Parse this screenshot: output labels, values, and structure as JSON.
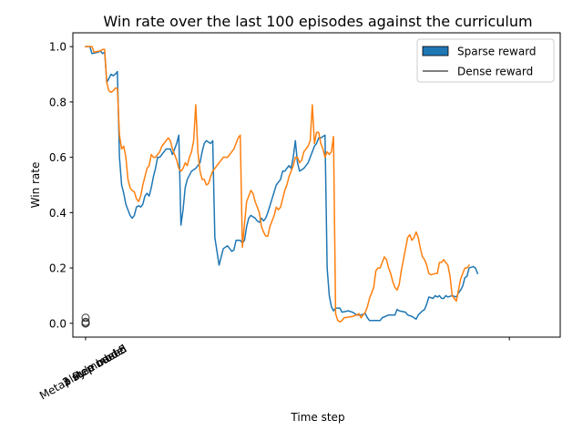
{
  "chart_data": {
    "type": "line",
    "title": "Win rate over the last 100 episodes against the curriculum",
    "xlabel": "Time step",
    "ylabel": "Win rate",
    "ylim": [
      -0.05,
      1.05
    ],
    "yticks": [
      0.0,
      0.2,
      0.4,
      0.6,
      0.8,
      1.0
    ],
    "ytick_labels": [
      "0.0",
      "0.2",
      "0.4",
      "0.6",
      "0.8",
      "1.0"
    ],
    "xlim": [
      -6,
      224
    ],
    "xtick_positions": [
      0,
      200
    ],
    "xtick_labels_at_0": [
      "Rule based",
      "3 step model",
      "2 step model",
      "1 step model",
      "Metaplay model 5"
    ],
    "legend": {
      "placement": "top-right",
      "entries": [
        {
          "name": "Sparse reward",
          "style": "patch",
          "color": "#1f77b4"
        },
        {
          "name": "Dense reward",
          "style": "line",
          "color": "#000000"
        }
      ]
    },
    "grid": false,
    "markers": {
      "x": [
        0,
        0,
        0,
        0,
        0
      ],
      "y": [
        0.0,
        0.005,
        0.0,
        0.02,
        0.0
      ],
      "style": "hollow-circle",
      "color": "#333333"
    },
    "series": [
      {
        "name": "Sparse reward",
        "color": "#1f77b4",
        "points": [
          [
            0,
            1.0
          ],
          [
            2,
            1.0
          ],
          [
            3,
            0.975
          ],
          [
            6,
            0.98
          ],
          [
            7,
            0.985
          ],
          [
            8,
            0.975
          ],
          [
            9,
            0.98
          ],
          [
            10,
            0.87
          ],
          [
            12,
            0.9
          ],
          [
            13,
            0.895
          ],
          [
            14,
            0.9
          ],
          [
            15,
            0.91
          ],
          [
            16,
            0.6
          ],
          [
            17,
            0.5
          ],
          [
            18,
            0.47
          ],
          [
            19,
            0.43
          ],
          [
            21,
            0.39
          ],
          [
            22,
            0.38
          ],
          [
            23,
            0.39
          ],
          [
            24,
            0.42
          ],
          [
            25,
            0.425
          ],
          [
            26,
            0.42
          ],
          [
            27,
            0.43
          ],
          [
            28,
            0.46
          ],
          [
            29,
            0.47
          ],
          [
            30,
            0.46
          ],
          [
            31,
            0.49
          ],
          [
            32,
            0.53
          ],
          [
            33,
            0.56
          ],
          [
            34,
            0.6
          ],
          [
            35,
            0.6
          ],
          [
            37,
            0.62
          ],
          [
            38,
            0.63
          ],
          [
            40,
            0.63
          ],
          [
            41,
            0.61
          ],
          [
            43,
            0.65
          ],
          [
            44,
            0.68
          ],
          [
            45,
            0.355
          ],
          [
            46,
            0.41
          ],
          [
            47,
            0.49
          ],
          [
            48,
            0.52
          ],
          [
            50,
            0.55
          ],
          [
            52,
            0.56
          ],
          [
            54,
            0.58
          ],
          [
            55,
            0.62
          ],
          [
            56,
            0.65
          ],
          [
            57,
            0.66
          ],
          [
            59,
            0.65
          ],
          [
            60,
            0.66
          ],
          [
            61,
            0.31
          ],
          [
            63,
            0.21
          ],
          [
            64,
            0.24
          ],
          [
            65,
            0.27
          ],
          [
            67,
            0.28
          ],
          [
            68,
            0.27
          ],
          [
            69,
            0.26
          ],
          [
            70,
            0.265
          ],
          [
            71,
            0.3
          ],
          [
            72,
            0.3
          ],
          [
            73,
            0.3
          ],
          [
            74,
            0.29
          ],
          [
            75,
            0.3
          ],
          [
            76,
            0.35
          ],
          [
            77,
            0.38
          ],
          [
            78,
            0.39
          ],
          [
            80,
            0.38
          ],
          [
            81,
            0.37
          ],
          [
            82,
            0.365
          ],
          [
            83,
            0.38
          ],
          [
            84,
            0.37
          ],
          [
            85,
            0.38
          ],
          [
            86,
            0.4
          ],
          [
            88,
            0.45
          ],
          [
            90,
            0.5
          ],
          [
            92,
            0.52
          ],
          [
            93,
            0.55
          ],
          [
            94,
            0.55
          ],
          [
            96,
            0.57
          ],
          [
            97,
            0.56
          ],
          [
            98,
            0.6
          ],
          [
            99,
            0.66
          ],
          [
            100,
            0.58
          ],
          [
            101,
            0.55
          ],
          [
            103,
            0.56
          ],
          [
            105,
            0.58
          ],
          [
            106,
            0.6
          ],
          [
            107,
            0.62
          ],
          [
            108,
            0.64
          ],
          [
            109,
            0.65
          ],
          [
            110,
            0.67
          ],
          [
            111,
            0.67
          ],
          [
            113,
            0.68
          ],
          [
            114,
            0.2
          ],
          [
            115,
            0.1
          ],
          [
            116,
            0.06
          ],
          [
            117,
            0.045
          ],
          [
            118,
            0.055
          ],
          [
            120,
            0.055
          ],
          [
            121,
            0.04
          ],
          [
            124,
            0.045
          ],
          [
            126,
            0.04
          ],
          [
            128,
            0.03
          ],
          [
            130,
            0.03
          ],
          [
            132,
            0.035
          ],
          [
            133,
            0.02
          ],
          [
            134,
            0.01
          ],
          [
            137,
            0.01
          ],
          [
            139,
            0.01
          ],
          [
            140,
            0.02
          ],
          [
            143,
            0.03
          ],
          [
            146,
            0.03
          ],
          [
            147,
            0.05
          ],
          [
            148,
            0.045
          ],
          [
            151,
            0.04
          ],
          [
            152,
            0.03
          ],
          [
            154,
            0.025
          ],
          [
            155,
            0.02
          ],
          [
            156,
            0.015
          ],
          [
            157,
            0.03
          ],
          [
            159,
            0.045
          ],
          [
            160,
            0.05
          ],
          [
            161,
            0.07
          ],
          [
            162,
            0.095
          ],
          [
            164,
            0.09
          ],
          [
            165,
            0.1
          ],
          [
            166,
            0.095
          ],
          [
            167,
            0.1
          ],
          [
            168,
            0.09
          ],
          [
            169,
            0.09
          ],
          [
            170,
            0.1
          ],
          [
            171,
            0.095
          ],
          [
            173,
            0.1
          ],
          [
            175,
            0.095
          ],
          [
            176,
            0.11
          ],
          [
            177,
            0.12
          ],
          [
            178,
            0.135
          ],
          [
            179,
            0.165
          ],
          [
            180,
            0.17
          ],
          [
            181,
            0.2
          ],
          [
            183,
            0.205
          ],
          [
            184,
            0.2
          ],
          [
            185,
            0.18
          ]
        ]
      },
      {
        "name": "",
        "color": "#ff7f0e",
        "points": [
          [
            0,
            1.0
          ],
          [
            3,
            1.0
          ],
          [
            4,
            0.98
          ],
          [
            7,
            0.985
          ],
          [
            8,
            0.99
          ],
          [
            9,
            0.99
          ],
          [
            10,
            0.87
          ],
          [
            11,
            0.84
          ],
          [
            12,
            0.835
          ],
          [
            13,
            0.84
          ],
          [
            14,
            0.85
          ],
          [
            15,
            0.85
          ],
          [
            16,
            0.68
          ],
          [
            17,
            0.63
          ],
          [
            18,
            0.64
          ],
          [
            19,
            0.6
          ],
          [
            20,
            0.52
          ],
          [
            21,
            0.49
          ],
          [
            22,
            0.48
          ],
          [
            23,
            0.475
          ],
          [
            24,
            0.45
          ],
          [
            25,
            0.44
          ],
          [
            26,
            0.46
          ],
          [
            27,
            0.5
          ],
          [
            28,
            0.53
          ],
          [
            29,
            0.56
          ],
          [
            30,
            0.57
          ],
          [
            31,
            0.61
          ],
          [
            32,
            0.6
          ],
          [
            33,
            0.6
          ],
          [
            35,
            0.62
          ],
          [
            36,
            0.64
          ],
          [
            38,
            0.66
          ],
          [
            39,
            0.67
          ],
          [
            40,
            0.66
          ],
          [
            41,
            0.63
          ],
          [
            42,
            0.61
          ],
          [
            43,
            0.59
          ],
          [
            44,
            0.56
          ],
          [
            45,
            0.55
          ],
          [
            46,
            0.56
          ],
          [
            47,
            0.58
          ],
          [
            48,
            0.57
          ],
          [
            49,
            0.6
          ],
          [
            50,
            0.62
          ],
          [
            51,
            0.66
          ],
          [
            52,
            0.79
          ],
          [
            53,
            0.62
          ],
          [
            54,
            0.55
          ],
          [
            55,
            0.52
          ],
          [
            56,
            0.52
          ],
          [
            57,
            0.5
          ],
          [
            58,
            0.505
          ],
          [
            59,
            0.53
          ],
          [
            60,
            0.55
          ],
          [
            61,
            0.56
          ],
          [
            62,
            0.57
          ],
          [
            64,
            0.59
          ],
          [
            65,
            0.6
          ],
          [
            67,
            0.6
          ],
          [
            68,
            0.61
          ],
          [
            70,
            0.63
          ],
          [
            71,
            0.65
          ],
          [
            72,
            0.67
          ],
          [
            73,
            0.68
          ],
          [
            74,
            0.275
          ],
          [
            75,
            0.36
          ],
          [
            76,
            0.44
          ],
          [
            77,
            0.46
          ],
          [
            78,
            0.48
          ],
          [
            79,
            0.47
          ],
          [
            80,
            0.44
          ],
          [
            81,
            0.42
          ],
          [
            82,
            0.4
          ],
          [
            83,
            0.35
          ],
          [
            84,
            0.33
          ],
          [
            85,
            0.315
          ],
          [
            86,
            0.315
          ],
          [
            87,
            0.35
          ],
          [
            88,
            0.37
          ],
          [
            89,
            0.39
          ],
          [
            90,
            0.42
          ],
          [
            91,
            0.41
          ],
          [
            92,
            0.42
          ],
          [
            93,
            0.45
          ],
          [
            94,
            0.48
          ],
          [
            95,
            0.5
          ],
          [
            96,
            0.53
          ],
          [
            97,
            0.55
          ],
          [
            98,
            0.57
          ],
          [
            99,
            0.6
          ],
          [
            100,
            0.6
          ],
          [
            101,
            0.58
          ],
          [
            102,
            0.59
          ],
          [
            103,
            0.62
          ],
          [
            104,
            0.63
          ],
          [
            105,
            0.64
          ],
          [
            106,
            0.66
          ],
          [
            107,
            0.79
          ],
          [
            108,
            0.65
          ],
          [
            109,
            0.69
          ],
          [
            110,
            0.69
          ],
          [
            111,
            0.65
          ],
          [
            112,
            0.63
          ],
          [
            113,
            0.6
          ],
          [
            114,
            0.62
          ],
          [
            115,
            0.61
          ],
          [
            116,
            0.62
          ],
          [
            117,
            0.675
          ],
          [
            118,
            0.035
          ],
          [
            119,
            0.01
          ],
          [
            120,
            0.005
          ],
          [
            121,
            0.01
          ],
          [
            122,
            0.02
          ],
          [
            126,
            0.025
          ],
          [
            128,
            0.03
          ],
          [
            129,
            0.035
          ],
          [
            130,
            0.02
          ],
          [
            132,
            0.04
          ],
          [
            133,
            0.06
          ],
          [
            134,
            0.09
          ],
          [
            135,
            0.11
          ],
          [
            136,
            0.13
          ],
          [
            137,
            0.19
          ],
          [
            138,
            0.2
          ],
          [
            139,
            0.2
          ],
          [
            140,
            0.22
          ],
          [
            141,
            0.24
          ],
          [
            142,
            0.23
          ],
          [
            143,
            0.2
          ],
          [
            144,
            0.18
          ],
          [
            145,
            0.15
          ],
          [
            146,
            0.13
          ],
          [
            147,
            0.12
          ],
          [
            148,
            0.14
          ],
          [
            149,
            0.19
          ],
          [
            150,
            0.23
          ],
          [
            151,
            0.27
          ],
          [
            152,
            0.31
          ],
          [
            153,
            0.32
          ],
          [
            154,
            0.3
          ],
          [
            155,
            0.31
          ],
          [
            156,
            0.33
          ],
          [
            157,
            0.31
          ],
          [
            158,
            0.27
          ],
          [
            159,
            0.24
          ],
          [
            160,
            0.23
          ],
          [
            161,
            0.21
          ],
          [
            162,
            0.18
          ],
          [
            163,
            0.175
          ],
          [
            165,
            0.18
          ],
          [
            166,
            0.18
          ],
          [
            167,
            0.22
          ],
          [
            168,
            0.22
          ],
          [
            169,
            0.23
          ],
          [
            170,
            0.22
          ],
          [
            171,
            0.21
          ],
          [
            172,
            0.17
          ],
          [
            173,
            0.1
          ],
          [
            174,
            0.09
          ],
          [
            175,
            0.08
          ],
          [
            176,
            0.12
          ],
          [
            177,
            0.16
          ],
          [
            178,
            0.18
          ],
          [
            179,
            0.2
          ],
          [
            180,
            0.2
          ],
          [
            181,
            0.21
          ]
        ]
      }
    ]
  }
}
